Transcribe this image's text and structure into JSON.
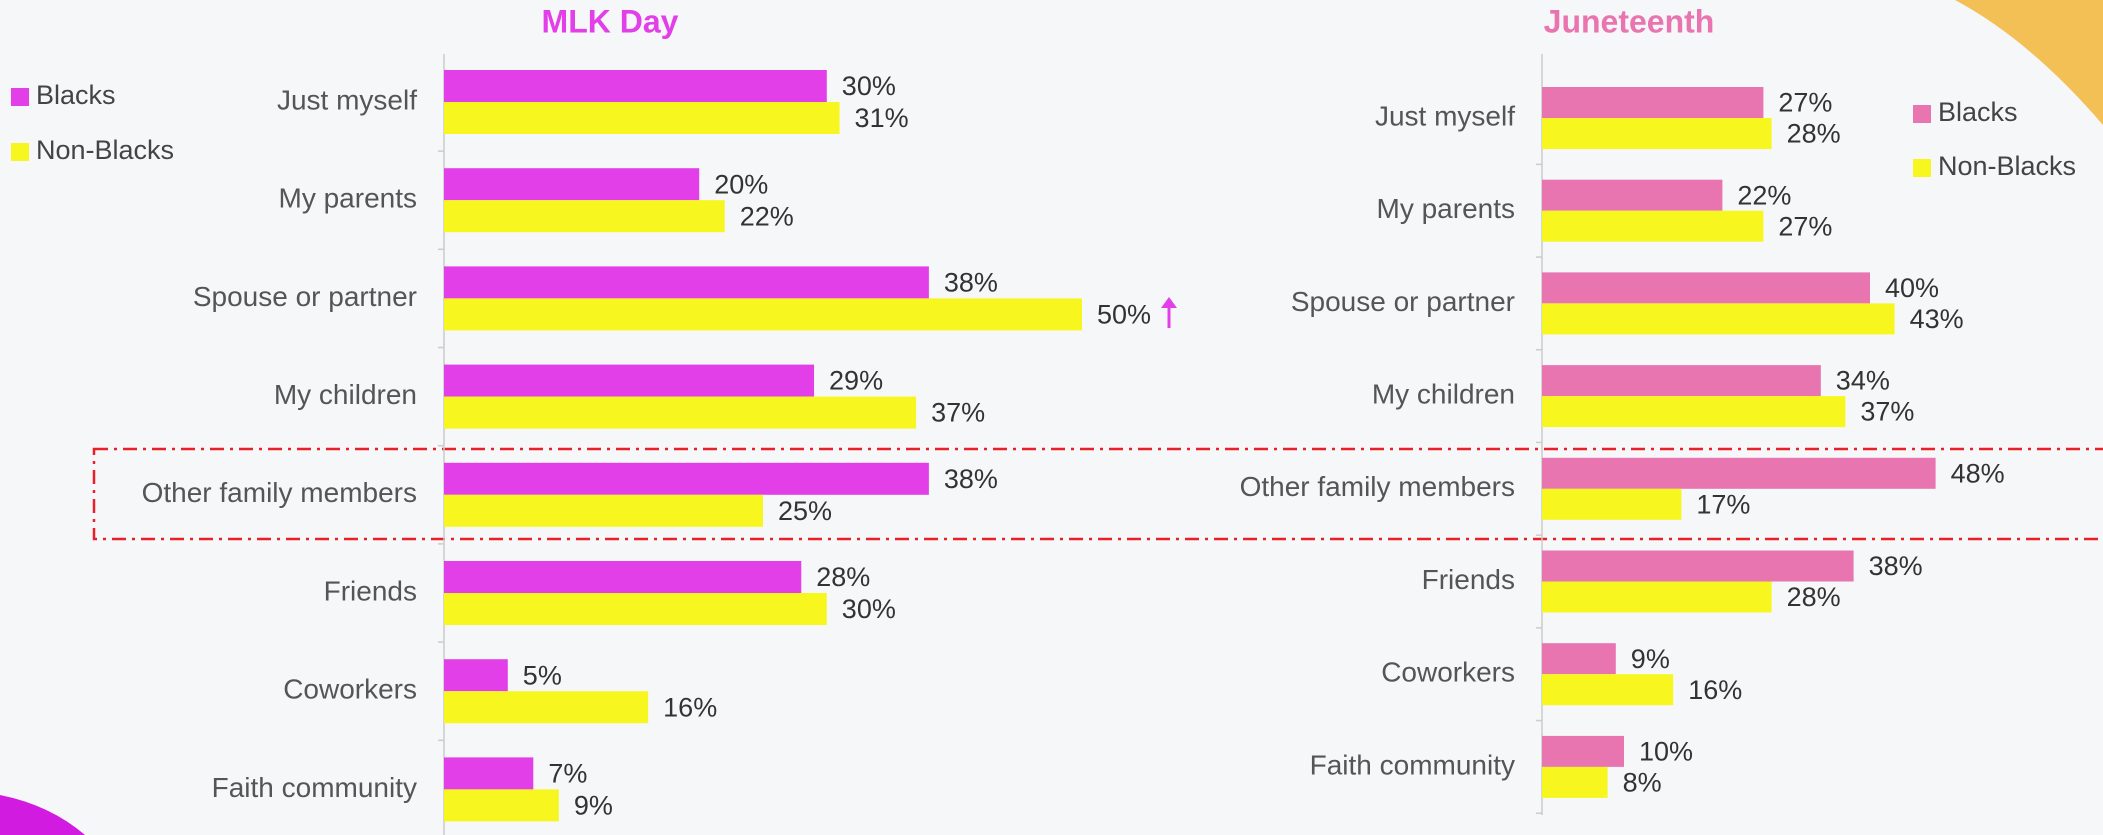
{
  "chart_data": [
    {
      "type": "bar",
      "title": "MLK Day",
      "title_color": "#e23fe8",
      "categories": [
        "Just myself",
        "My parents",
        "Spouse or partner",
        "My children",
        "Other family members",
        "Friends",
        "Coworkers",
        "Faith community"
      ],
      "series": [
        {
          "name": "Blacks",
          "color": "#e23fe8",
          "values": [
            30,
            20,
            38,
            29,
            38,
            28,
            5,
            7
          ],
          "value_labels": [
            "30%",
            "20%",
            "38%",
            "29%",
            "38%",
            "28%",
            "5%",
            "7%"
          ]
        },
        {
          "name": "Non-Blacks",
          "color": "#f7f71f",
          "values": [
            31,
            22,
            50,
            37,
            25,
            30,
            16,
            9
          ],
          "value_labels": [
            "31%",
            "22%",
            "50%",
            "37%",
            "25%",
            "30%",
            "16%",
            "9%"
          ]
        }
      ]
    },
    {
      "type": "bar",
      "title": "Juneteenth",
      "title_color": "#e874b0",
      "categories": [
        "Just myself",
        "My parents",
        "Spouse or partner",
        "My children",
        "Other family members",
        "Friends",
        "Coworkers",
        "Faith community"
      ],
      "series": [
        {
          "name": "Blacks",
          "color": "#e874b0",
          "values": [
            27,
            22,
            40,
            34,
            48,
            38,
            9,
            10
          ],
          "value_labels": [
            "27%",
            "22%",
            "40%",
            "34%",
            "48%",
            "38%",
            "9%",
            "10%"
          ]
        },
        {
          "name": "Non-Blacks",
          "color": "#f7f71f",
          "values": [
            28,
            27,
            43,
            37,
            17,
            28,
            16,
            8
          ],
          "value_labels": [
            "28%",
            "27%",
            "43%",
            "37%",
            "17%",
            "28%",
            "16%",
            "8%"
          ]
        }
      ]
    }
  ]
}
